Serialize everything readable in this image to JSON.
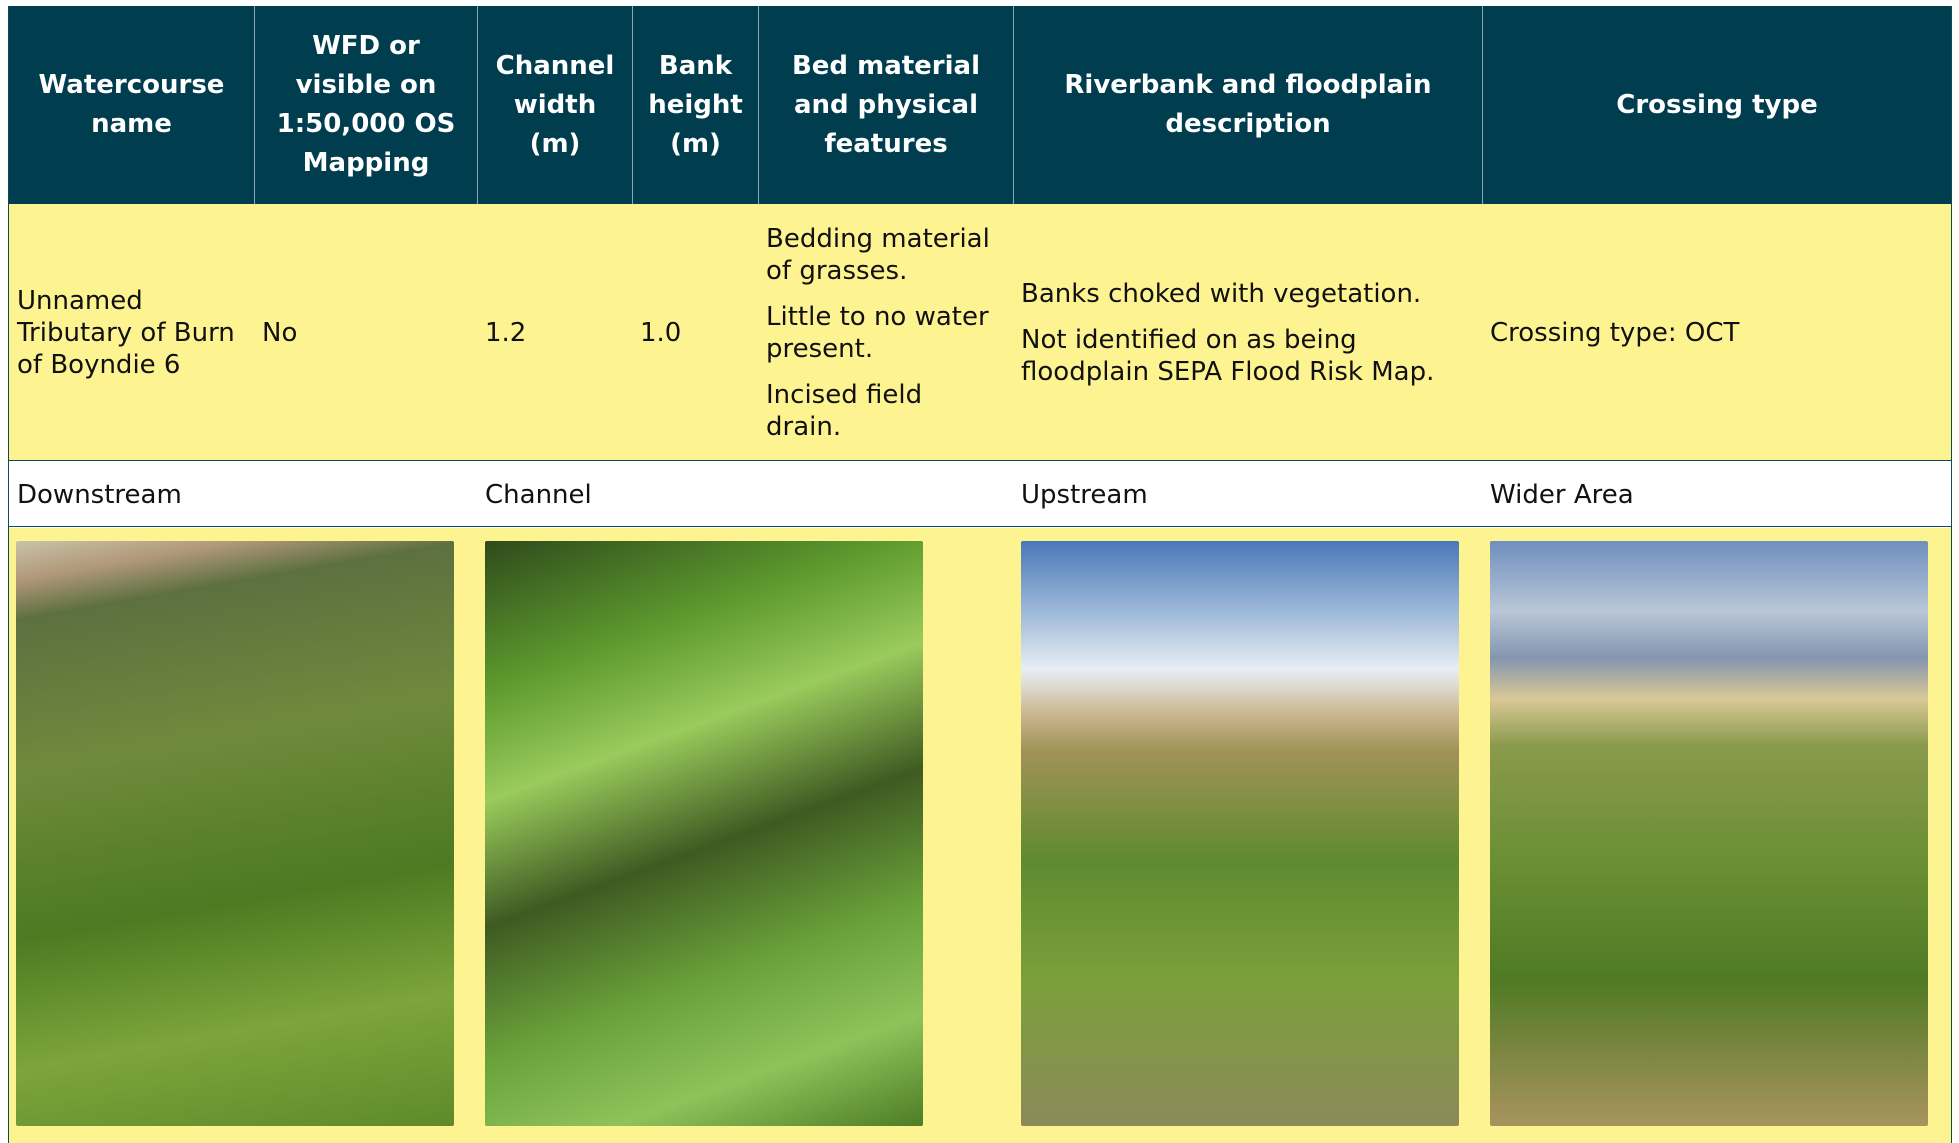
{
  "header": {
    "columns": [
      "Watercourse name",
      "WFD or visible on 1:50,000 OS Mapping",
      "Channel width (m)",
      "Bank height (m)",
      "Bed material and physical features",
      "Riverbank and floodplain description",
      "Crossing type"
    ]
  },
  "row": {
    "watercourse": "Unnamed Tributary of Burn of Boyndie 6",
    "wfd": "No",
    "channel_width": "1.2",
    "bank_height": "1.0",
    "bed_material": [
      "Bedding material of grasses.",
      "Little to no water present.",
      "Incised field drain."
    ],
    "riverbank": [
      "Banks choked with vegetation.",
      "Not identified on as being floodplain SEPA Flood Risk Map."
    ],
    "crossing_type": "Crossing type: OCT"
  },
  "photo_labels": [
    "Downstream",
    "Channel",
    "Upstream",
    "Wider Area"
  ]
}
